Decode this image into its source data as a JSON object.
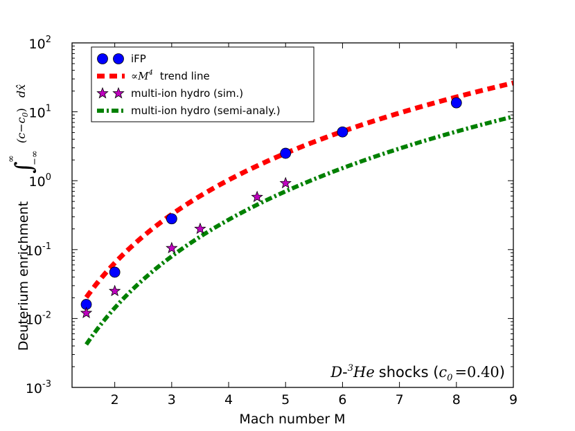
{
  "chart_data": {
    "type": "scatter",
    "title": "",
    "xlabel": "Mach number M",
    "ylabel_prefix": "Deuterium enrichment",
    "ylabel_integral_upper": "∞",
    "ylabel_integral_lower": "−∞",
    "ylabel_integrand": "(c−c",
    "ylabel_integrand_sub": "0",
    "ylabel_integrand_close": ")",
    "ylabel_dx": "dx̂",
    "xlim": [
      1.25,
      9
    ],
    "ylim": [
      0.001,
      100
    ],
    "yscale": "log",
    "x_ticks": [
      2,
      3,
      4,
      5,
      6,
      7,
      8,
      9
    ],
    "x_tick_labels": [
      "2",
      "3",
      "4",
      "5",
      "6",
      "7",
      "8",
      "9"
    ],
    "y_ticks": [
      0.001,
      0.01,
      0.1,
      1,
      10,
      100
    ],
    "y_tick_base": "10",
    "y_tick_exponents": [
      "-3",
      "-2",
      "-1",
      "0",
      "1",
      "2"
    ],
    "series": [
      {
        "name": "iFP",
        "legend_label": "iFP",
        "kind": "markers",
        "marker": "circle",
        "color": "#0000ff",
        "x": [
          1.5,
          2,
          3,
          5,
          6,
          8
        ],
        "y": [
          0.016,
          0.047,
          0.28,
          2.5,
          5.1,
          13.5
        ]
      },
      {
        "name": "M4 trend line",
        "legend_prefix": "∝",
        "legend_var": "M",
        "legend_exp": "4",
        "legend_suffix": "trend line",
        "kind": "line",
        "style": "dashed",
        "color": "#ff0000",
        "function": "power4",
        "coefficient": 0.004,
        "x_range": [
          1.5,
          9
        ]
      },
      {
        "name": "multi-ion hydro (sim.)",
        "legend_label": "multi-ion hydro (sim.)",
        "kind": "markers",
        "marker": "star",
        "color": "#bf00bf",
        "x": [
          1.5,
          2,
          3,
          3.5,
          4.5,
          5
        ],
        "y": [
          0.012,
          0.025,
          0.105,
          0.2,
          0.58,
          0.92
        ]
      },
      {
        "name": "multi-ion hydro (semi-analy.)",
        "legend_label": "multi-ion hydro (semi-analy.)",
        "kind": "line",
        "style": "dashdot",
        "color": "#008000",
        "function": "power4_5",
        "coefficient": 0.00075,
        "exponent": 4.25,
        "x_range": [
          1.5,
          9
        ]
      }
    ],
    "annotation": {
      "prefix": "D",
      "dash": "-",
      "sup": "3",
      "he": "He",
      "word": "shocks (",
      "c": "c",
      "c_sub": "0",
      "eq": "=0.40",
      "close": ")"
    }
  }
}
